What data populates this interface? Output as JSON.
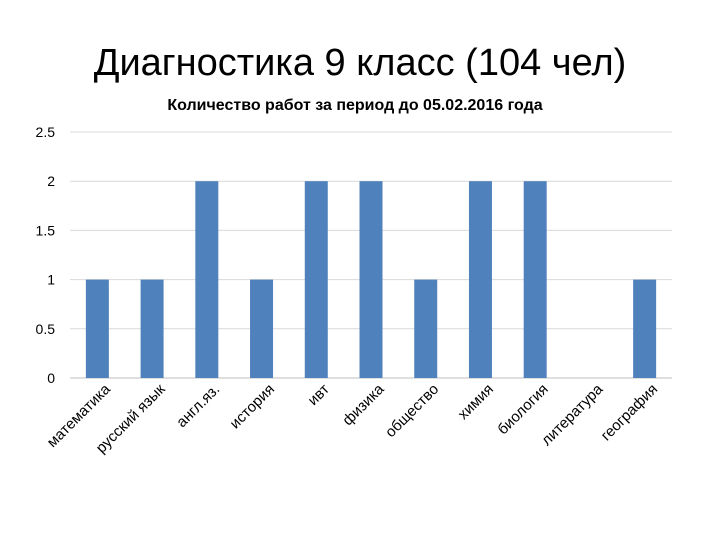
{
  "slide": {
    "title": "Диагностика 9 класс (104 чел)"
  },
  "chart_data": {
    "type": "bar",
    "title": "Количество работ за период до 05.02.2016 года",
    "xlabel": "",
    "ylabel": "",
    "categories": [
      "математика",
      "русский язык",
      "англ.яз.",
      "история",
      "ивт",
      "физика",
      "обществo",
      "химия",
      "биология",
      "литература",
      "география"
    ],
    "values": [
      1,
      1,
      2,
      1,
      2,
      2,
      1,
      2,
      2,
      0,
      1
    ],
    "ylim": [
      0,
      2.5
    ],
    "yticks": [
      0,
      0.5,
      1,
      1.5,
      2,
      2.5
    ],
    "grid": true,
    "legend": "none",
    "bar_color": "#4F81BD",
    "grid_color": "#D9D9D9"
  }
}
